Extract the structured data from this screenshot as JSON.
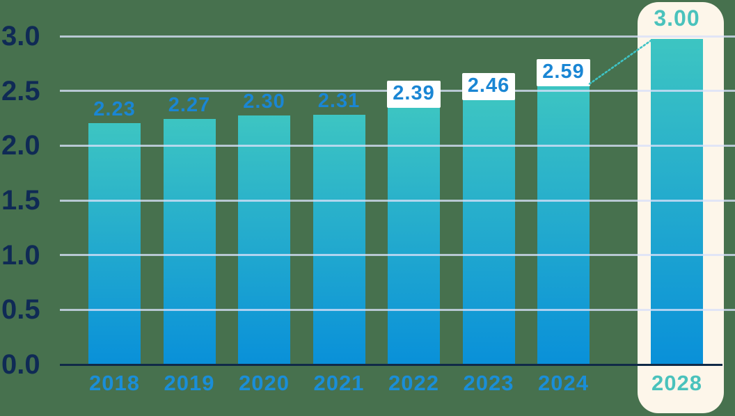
{
  "chart_data": {
    "type": "bar",
    "title": "",
    "xlabel": "",
    "ylabel": "",
    "categories": [
      "2018",
      "2019",
      "2020",
      "2021",
      "2022",
      "2023",
      "2024",
      "2028"
    ],
    "values": [
      2.23,
      2.27,
      2.3,
      2.31,
      2.39,
      2.46,
      2.59,
      3.0
    ],
    "y_ticks": [
      "3.0",
      "2.5",
      "2.0",
      "1.5",
      "1.0",
      "0.5",
      "0.0"
    ],
    "ylim": [
      0,
      3
    ],
    "grid": true,
    "legend": "none",
    "highlight_category": "2028",
    "points": [
      {
        "category": "2018",
        "value": 2.23,
        "label": "2.23",
        "chip": false,
        "highlight": false
      },
      {
        "category": "2019",
        "value": 2.27,
        "label": "2.27",
        "chip": false,
        "highlight": false
      },
      {
        "category": "2020",
        "value": 2.3,
        "label": "2.30",
        "chip": false,
        "highlight": false
      },
      {
        "category": "2021",
        "value": 2.31,
        "label": "2.31",
        "chip": false,
        "highlight": false
      },
      {
        "category": "2022",
        "value": 2.39,
        "label": "2.39",
        "chip": true,
        "highlight": false
      },
      {
        "category": "2023",
        "value": 2.46,
        "label": "2.46",
        "chip": true,
        "highlight": false
      },
      {
        "category": "2024",
        "value": 2.59,
        "label": "2.59",
        "chip": true,
        "highlight": false
      },
      {
        "category": "2028",
        "value": 3.0,
        "label": "3.00",
        "chip": false,
        "highlight": true
      }
    ],
    "annotation": {
      "type": "dotted-projection-line",
      "from_category": "2024",
      "to_category": "2028"
    },
    "colors": {
      "background": "#47714e",
      "bar_gradient_top": "#3dc5c2",
      "bar_gradient_bottom": "#0990d9",
      "grid_line": "#d8e0f8",
      "axis_line": "#102a47",
      "y_tick_label": "#0f2a55",
      "x_tick_label": "#1a8ed8",
      "value_label": "#1a86d4",
      "highlight_text": "#4ac2bc",
      "highlight_panel": "#fdf6ea",
      "chip_background": "#ffffff",
      "projection_line": "#3ec4c6"
    }
  }
}
